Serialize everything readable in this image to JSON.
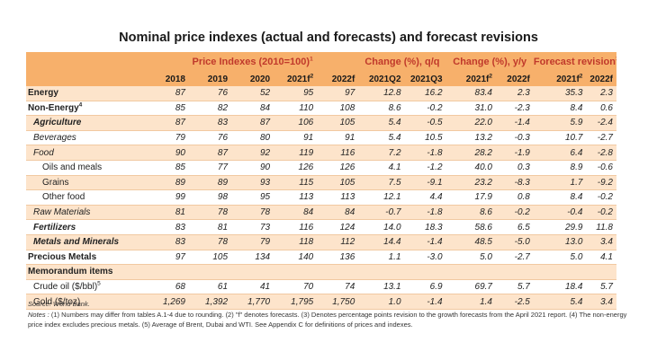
{
  "title": "Nominal price indexes (actual and forecasts) and forecast revisions",
  "header": {
    "groups": [
      {
        "label": "Price Indexes (2010=100)",
        "sup": "1"
      },
      {
        "label": "Change (%), q/q",
        "sup": ""
      },
      {
        "label": "Change (%), y/y",
        "sup": ""
      },
      {
        "label": "Forecast revision",
        "sup": "3"
      }
    ],
    "columns": [
      "2018",
      "2019",
      "2020",
      "2021f",
      "2022f",
      "2021Q2",
      "2021Q3",
      "2021f",
      "2022f",
      "2021f",
      "2022f"
    ],
    "column_sups": [
      "",
      "",
      "",
      "2",
      "",
      "",
      "",
      "2",
      "",
      "2",
      ""
    ]
  },
  "rows": [
    {
      "label": "Energy",
      "sup": "",
      "level": "l0",
      "shade": true,
      "values": [
        "87",
        "76",
        "52",
        "95",
        "97",
        "12.8",
        "16.2",
        "83.4",
        "2.3",
        "35.3",
        "2.3"
      ]
    },
    {
      "label": "Non-Energy",
      "sup": "4",
      "level": "l0",
      "shade": false,
      "values": [
        "85",
        "82",
        "84",
        "110",
        "108",
        "8.6",
        "-0.2",
        "31.0",
        "-2.3",
        "8.4",
        "0.6"
      ]
    },
    {
      "label": "Agriculture",
      "sup": "",
      "level": "l1",
      "shade": true,
      "values": [
        "87",
        "83",
        "87",
        "106",
        "105",
        "5.4",
        "-0.5",
        "22.0",
        "-1.4",
        "5.9",
        "-2.4"
      ]
    },
    {
      "label": "Beverages",
      "sup": "",
      "level": "l1n",
      "shade": false,
      "values": [
        "79",
        "76",
        "80",
        "91",
        "91",
        "5.4",
        "10.5",
        "13.2",
        "-0.3",
        "10.7",
        "-2.7"
      ]
    },
    {
      "label": "Food",
      "sup": "",
      "level": "l1n",
      "shade": true,
      "values": [
        "90",
        "87",
        "92",
        "119",
        "116",
        "7.2",
        "-1.8",
        "28.2",
        "-1.9",
        "6.4",
        "-2.8"
      ]
    },
    {
      "label": "Oils and meals",
      "sup": "",
      "level": "l2",
      "shade": false,
      "values": [
        "85",
        "77",
        "90",
        "126",
        "126",
        "4.1",
        "-1.2",
        "40.0",
        "0.3",
        "8.9",
        "-0.6"
      ]
    },
    {
      "label": "Grains",
      "sup": "",
      "level": "l2",
      "shade": true,
      "values": [
        "89",
        "89",
        "93",
        "115",
        "105",
        "7.5",
        "-9.1",
        "23.2",
        "-8.3",
        "1.7",
        "-9.2"
      ]
    },
    {
      "label": "Other food",
      "sup": "",
      "level": "l2",
      "shade": false,
      "values": [
        "99",
        "98",
        "95",
        "113",
        "113",
        "12.1",
        "4.4",
        "17.9",
        "0.8",
        "8.4",
        "-0.2"
      ]
    },
    {
      "label": "Raw Materials",
      "sup": "",
      "level": "l1n",
      "shade": true,
      "values": [
        "81",
        "78",
        "78",
        "84",
        "84",
        "-0.7",
        "-1.8",
        "8.6",
        "-0.2",
        "-0.4",
        "-0.2"
      ]
    },
    {
      "label": "Fertilizers",
      "sup": "",
      "level": "l1",
      "shade": false,
      "values": [
        "83",
        "81",
        "73",
        "116",
        "124",
        "14.0",
        "18.3",
        "58.6",
        "6.5",
        "29.9",
        "11.8"
      ]
    },
    {
      "label": "Metals and Minerals",
      "sup": "",
      "level": "l1",
      "shade": true,
      "values": [
        "83",
        "78",
        "79",
        "118",
        "112",
        "14.4",
        "-1.4",
        "48.5",
        "-5.0",
        "13.0",
        "3.4"
      ]
    },
    {
      "label": "Precious Metals",
      "sup": "",
      "level": "l0",
      "shade": false,
      "values": [
        "97",
        "105",
        "134",
        "140",
        "136",
        "1.1",
        "-3.0",
        "5.0",
        "-2.7",
        "5.0",
        "4.1"
      ]
    },
    {
      "label": "Memorandum items",
      "sup": "",
      "level": "memo",
      "shade": true,
      "values": [
        "",
        "",
        "",
        "",
        "",
        "",
        "",
        "",
        "",
        "",
        ""
      ]
    },
    {
      "label": "Crude oil ($/bbl)",
      "sup": "5",
      "level": "l1plain",
      "shade": false,
      "values": [
        "68",
        "61",
        "41",
        "70",
        "74",
        "13.1",
        "6.9",
        "69.7",
        "5.7",
        "18.4",
        "5.7"
      ]
    },
    {
      "label": "Gold ($/toz)",
      "sup": "",
      "level": "l1plain",
      "shade": true,
      "values": [
        "1,269",
        "1,392",
        "1,770",
        "1,795",
        "1,750",
        "1.0",
        "-1.4",
        "1.4",
        "-2.5",
        "5.4",
        "3.4"
      ]
    }
  ],
  "source": "Source: World Bank.",
  "notes_label": "Notes :",
  "notes_text": "(1) Numbers may differ from tables A.1-4 due to rounding. (2) \"f\" denotes forecasts. (3) Denotes percentage points revision to the growth forecasts from the April 2021 report. (4) The non-energy price index excludes precious metals. (5) Average of Brent, Dubai and WTI. See Appendix C for definitions of prices and indexes."
}
